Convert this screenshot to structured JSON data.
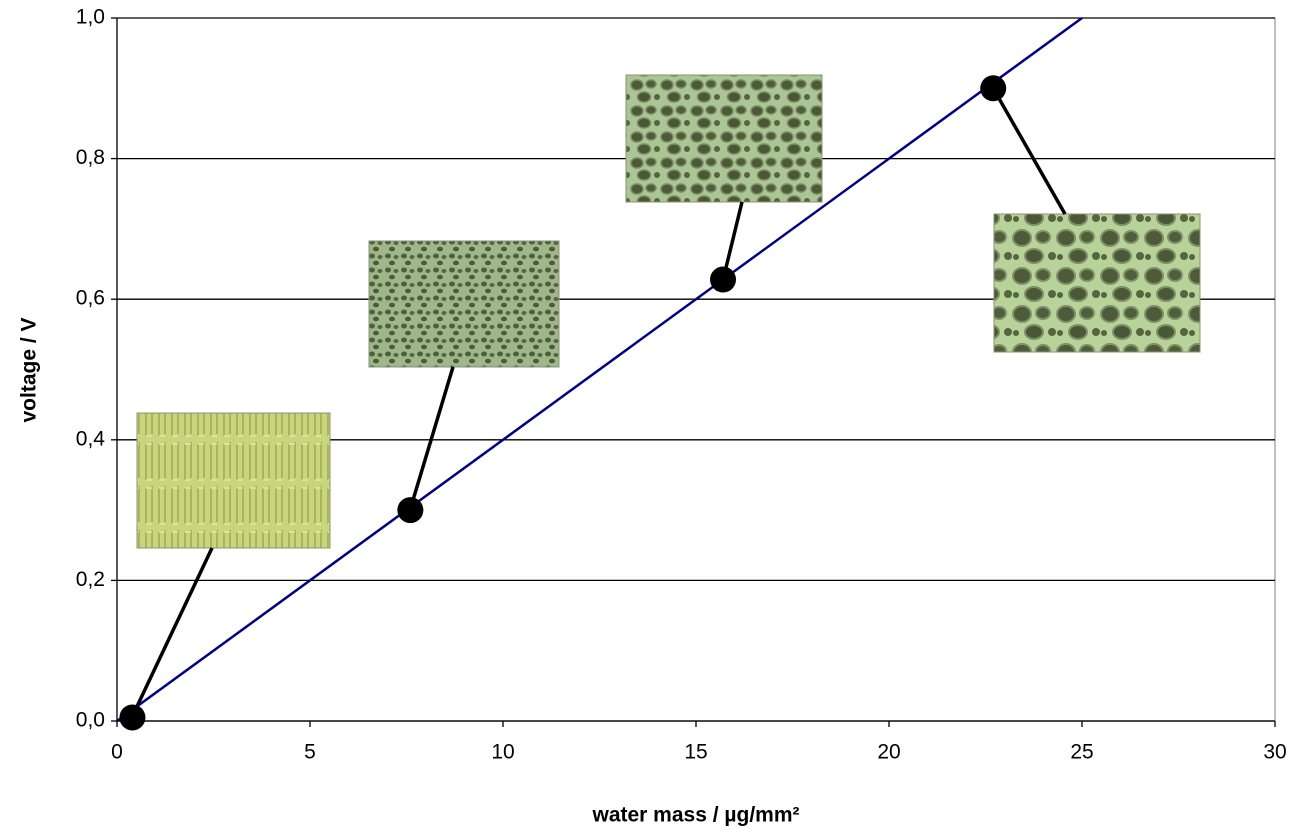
{
  "chart_data": {
    "type": "scatter",
    "x_label": "water mass / µg/mm²",
    "y_label": "voltage / V",
    "xlim": [
      0,
      30
    ],
    "xticks": [
      0,
      5,
      10,
      15,
      20,
      25,
      30
    ],
    "ylim": [
      0,
      1
    ],
    "yticks": [
      {
        "value": 0,
        "label": "0,0"
      },
      {
        "value": 0.2,
        "label": "0,2"
      },
      {
        "value": 0.4,
        "label": "0,4"
      },
      {
        "value": 0.6,
        "label": "0,6"
      },
      {
        "value": 0.8,
        "label": "0,8"
      },
      {
        "value": 1,
        "label": "1,0"
      }
    ],
    "grid": true,
    "series": [
      {
        "type": "line",
        "color": "#000080",
        "x": [
          0,
          25
        ],
        "values": [
          0,
          1
        ]
      },
      {
        "type": "scatter",
        "color": "#000000",
        "x": [
          0.4,
          7.6,
          15.7,
          22.7
        ],
        "values": [
          0.005,
          0.3,
          0.628,
          0.9
        ]
      }
    ]
  }
}
